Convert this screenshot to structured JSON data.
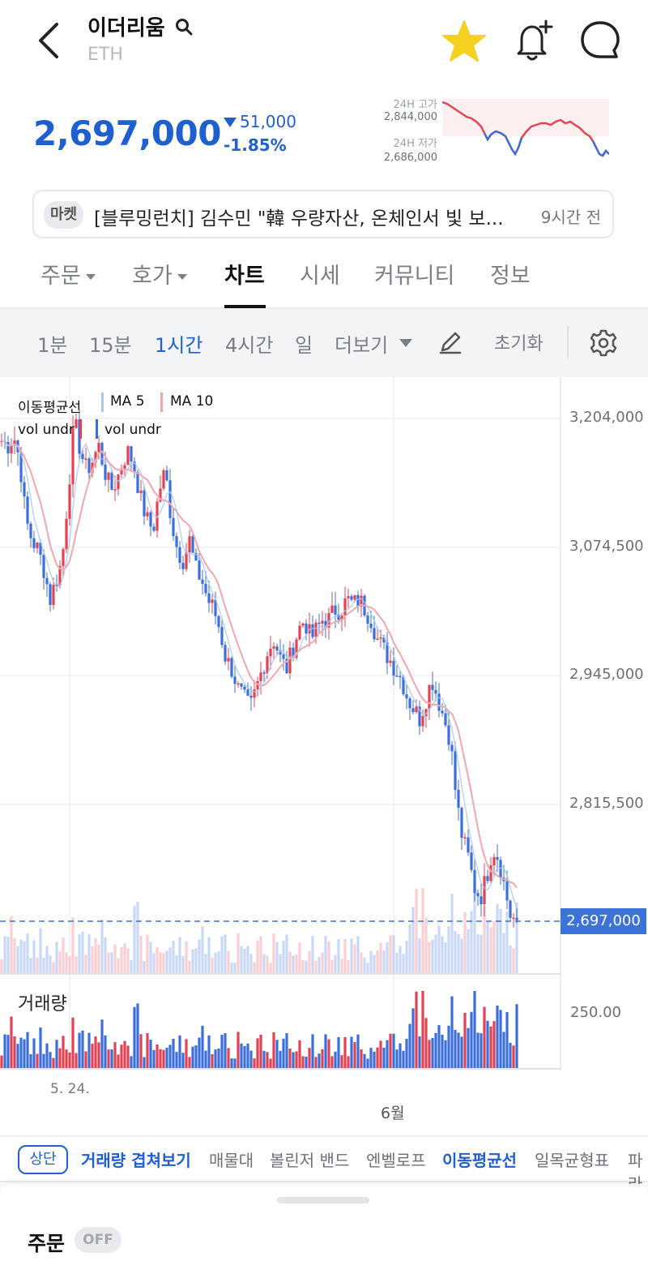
{
  "header": {
    "coin_name": "이더리움",
    "coin_symbol": "ETH",
    "icons": [
      "back-arrow-icon",
      "search-icon",
      "star-icon",
      "bell-plus-icon",
      "chat-bubble-icon"
    ]
  },
  "price": {
    "current": "2,697,000",
    "change_amount": "51,000",
    "change_rate": "-1.85%",
    "direction": "down",
    "high_label": "24H 고가",
    "high_value": "2,844,000",
    "low_label": "24H 저가",
    "low_value": "2,686,000"
  },
  "news": {
    "tag": "마켓",
    "headline": "[블루밍런치] 김수민 \"韓 우량자산, 온체인서 빛 보...",
    "time": "9시간 전"
  },
  "tabs": [
    {
      "label": "주문",
      "dropdown": true
    },
    {
      "label": "호가",
      "dropdown": true
    },
    {
      "label": "차트",
      "active": true
    },
    {
      "label": "시세"
    },
    {
      "label": "커뮤니티"
    },
    {
      "label": "정보"
    }
  ],
  "toolbar": {
    "intervals": [
      "1분",
      "15분",
      "1시간",
      "4시간",
      "일"
    ],
    "active_interval": "1시간",
    "more_label": "더보기",
    "reset_label": "초기화"
  },
  "chart_legend": {
    "ma_title": "이동평균선",
    "ma5": "MA 5",
    "ma10": "MA 10",
    "vol1": "vol undr",
    "vol2": "vol undr"
  },
  "chart_axis": {
    "y_ticks": [
      "3,204,000",
      "3,074,500",
      "2,945,000",
      "2,815,500"
    ],
    "price_tag": "2,697,000",
    "volume_title": "거래량",
    "volume_tick": "250.00",
    "x_labels": [
      "5. 24.",
      "6월"
    ]
  },
  "colors": {
    "accent_blue": "#1f5fcf",
    "up_red": "#e04454",
    "down_blue": "#3d6fd8",
    "ma5": "#a9c8ef",
    "ma10": "#f2a6ad"
  },
  "indicators": {
    "top_label": "상단",
    "items": [
      {
        "label": "거래량 겹쳐보기",
        "active": true
      },
      {
        "label": "매물대"
      },
      {
        "label": "볼린저 밴드"
      },
      {
        "label": "엔벨로프"
      },
      {
        "label": "이동평균선",
        "active": true
      },
      {
        "label": "일목균형표"
      },
      {
        "label": "파라"
      }
    ]
  },
  "order_sheet": {
    "title": "주문",
    "toggle": "OFF"
  },
  "chart_data": {
    "type": "candlestick",
    "ylim": [
      2660000,
      3240000
    ],
    "x_labels": [
      "5. 24.",
      "6월"
    ],
    "close_path": [
      3180000,
      3175000,
      3185000,
      3160000,
      3100000,
      3080000,
      3070000,
      3050000,
      3020000,
      3040000,
      3060000,
      3130000,
      3200000,
      3170000,
      3150000,
      3160000,
      3175000,
      3150000,
      3130000,
      3140000,
      3160000,
      3170000,
      3150000,
      3120000,
      3100000,
      3090000,
      3130000,
      3150000,
      3100000,
      3070000,
      3060000,
      3080000,
      3050000,
      3040000,
      3020000,
      3010000,
      2990000,
      2960000,
      2950000,
      2930000,
      2920000,
      2910000,
      2930000,
      2950000,
      2970000,
      2980000,
      2960000,
      2950000,
      2970000,
      2990000,
      3000000,
      2980000,
      2990000,
      3000000,
      3000000,
      3010000,
      3010000,
      3020000,
      3015000,
      3020000,
      3010000,
      3000000,
      2980000,
      2970000,
      2960000,
      2950000,
      2940000,
      2920000,
      2910000,
      2900000,
      2920000,
      2940000,
      2920000,
      2900000,
      2880000,
      2820000,
      2780000,
      2760000,
      2730000,
      2720000,
      2740000,
      2770000,
      2760000,
      2730000,
      2700000,
      2697000
    ]
  }
}
